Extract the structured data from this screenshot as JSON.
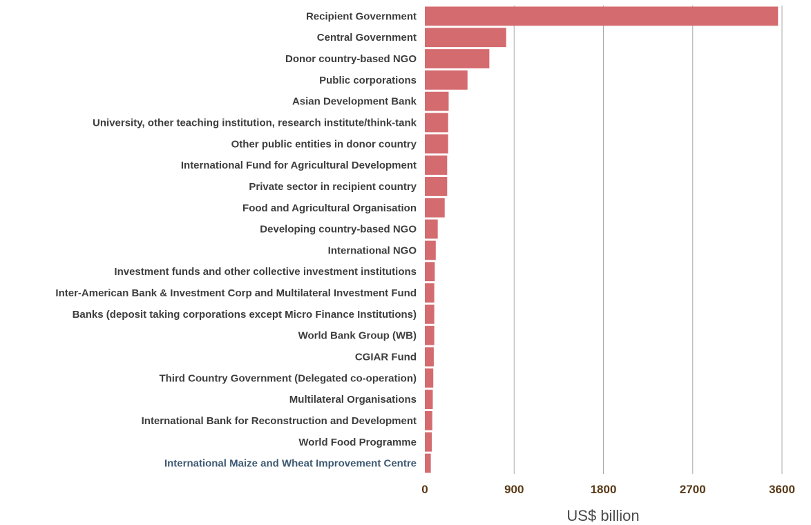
{
  "chart_data": {
    "type": "bar",
    "orientation": "horizontal",
    "categories": [
      "Recipient Government",
      "Central Government",
      "Donor country-based NGO",
      "Public corporations",
      "Asian Development Bank",
      "University, other teaching institution, research institute/think-tank",
      "Other public entities in donor country",
      "International Fund for Agricultural Development",
      "Private sector in recipient country",
      "Food and Agricultural Organisation",
      "Developing country-based NGO",
      "International NGO",
      "Investment funds and other collective investment institutions",
      "Inter-American Bank & Investment Corp and Multilateral Investment Fund",
      "Banks (deposit taking corporations except Micro Finance Institutions)",
      "World Bank Group (WB)",
      "CGIAR Fund",
      "Third Country Government (Delegated co-operation)",
      "Multilateral Organisations",
      "International Bank for Reconstruction and Development",
      "World Food Programme",
      "International Maize and Wheat Improvement Centre"
    ],
    "values": [
      3560,
      820,
      650,
      430,
      240,
      235,
      235,
      225,
      225,
      200,
      130,
      110,
      100,
      95,
      95,
      95,
      90,
      85,
      80,
      75,
      70,
      60
    ],
    "xlabel": "US$ billion",
    "ylabel": "",
    "title": "",
    "xlim": [
      0,
      3600
    ],
    "xticks": [
      0,
      900,
      1800,
      2700,
      3600
    ],
    "grid": "vertical",
    "highlighted_category": "International Maize and Wheat Improvement Centre",
    "colors": {
      "bar": "#d46b6f",
      "grid": "#a9a9a9",
      "category_label": "#3d3d3d",
      "highlight_label": "#3f5a73",
      "tick_label": "#5a3a17",
      "axis_title": "#4a4a4a"
    }
  }
}
